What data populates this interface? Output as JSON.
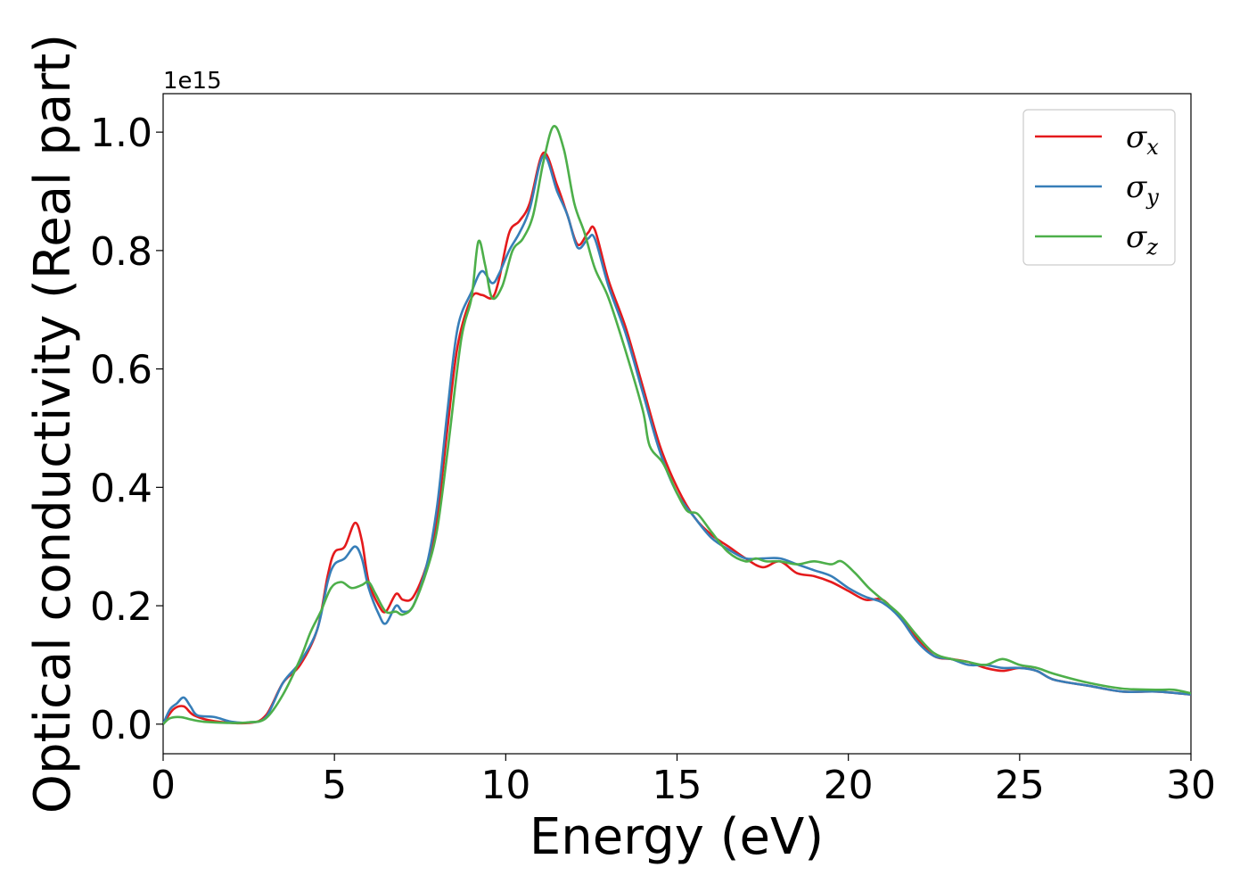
{
  "chart_data": {
    "type": "line",
    "xlabel": "Energy (eV)",
    "ylabel": "Optical conductivity (Real part)",
    "y_offset_label": "1e15",
    "xlim": [
      0,
      30
    ],
    "ylim": [
      -0.05,
      1.065
    ],
    "x_ticks": [
      0,
      5,
      10,
      15,
      20,
      25,
      30
    ],
    "x_tick_labels": [
      "0",
      "5",
      "10",
      "15",
      "20",
      "25",
      "30"
    ],
    "y_ticks": [
      0.0,
      0.2,
      0.4,
      0.6,
      0.8,
      1.0
    ],
    "y_tick_labels": [
      "0.0",
      "0.2",
      "0.4",
      "0.6",
      "0.8",
      "1.0"
    ],
    "grid": false,
    "legend_position": "top-right",
    "series": [
      {
        "name": "σx",
        "name_base": "σ",
        "name_sub": "x",
        "color": "#e41a1c",
        "points": [
          [
            0,
            0
          ],
          [
            0.3,
            0.025
          ],
          [
            0.6,
            0.03
          ],
          [
            0.9,
            0.015
          ],
          [
            1.5,
            0.005
          ],
          [
            2.5,
            0.002
          ],
          [
            3.0,
            0.015
          ],
          [
            3.5,
            0.07
          ],
          [
            4.0,
            0.1
          ],
          [
            4.5,
            0.16
          ],
          [
            4.8,
            0.25
          ],
          [
            5.0,
            0.29
          ],
          [
            5.3,
            0.3
          ],
          [
            5.6,
            0.34
          ],
          [
            5.8,
            0.31
          ],
          [
            6.0,
            0.24
          ],
          [
            6.3,
            0.2
          ],
          [
            6.5,
            0.19
          ],
          [
            6.8,
            0.22
          ],
          [
            7.0,
            0.21
          ],
          [
            7.3,
            0.215
          ],
          [
            7.7,
            0.27
          ],
          [
            8.0,
            0.35
          ],
          [
            8.3,
            0.5
          ],
          [
            8.6,
            0.64
          ],
          [
            9.0,
            0.72
          ],
          [
            9.3,
            0.725
          ],
          [
            9.6,
            0.72
          ],
          [
            9.8,
            0.75
          ],
          [
            10.1,
            0.83
          ],
          [
            10.4,
            0.85
          ],
          [
            10.7,
            0.88
          ],
          [
            11.1,
            0.965
          ],
          [
            11.5,
            0.91
          ],
          [
            11.8,
            0.86
          ],
          [
            12.1,
            0.81
          ],
          [
            12.4,
            0.83
          ],
          [
            12.6,
            0.835
          ],
          [
            13.0,
            0.75
          ],
          [
            13.5,
            0.67
          ],
          [
            14.0,
            0.57
          ],
          [
            14.5,
            0.47
          ],
          [
            15.0,
            0.4
          ],
          [
            15.5,
            0.35
          ],
          [
            16.0,
            0.32
          ],
          [
            16.5,
            0.3
          ],
          [
            17.0,
            0.28
          ],
          [
            17.5,
            0.265
          ],
          [
            18.0,
            0.275
          ],
          [
            18.5,
            0.255
          ],
          [
            19.0,
            0.25
          ],
          [
            19.5,
            0.24
          ],
          [
            20.0,
            0.225
          ],
          [
            20.5,
            0.21
          ],
          [
            21.0,
            0.21
          ],
          [
            21.5,
            0.18
          ],
          [
            22.0,
            0.145
          ],
          [
            22.5,
            0.115
          ],
          [
            23.0,
            0.11
          ],
          [
            23.5,
            0.105
          ],
          [
            24.0,
            0.095
          ],
          [
            24.5,
            0.09
          ],
          [
            25.0,
            0.095
          ],
          [
            25.5,
            0.09
          ],
          [
            26.0,
            0.075
          ],
          [
            27.0,
            0.065
          ],
          [
            28.0,
            0.055
          ],
          [
            29.0,
            0.055
          ],
          [
            30.0,
            0.05
          ]
        ]
      },
      {
        "name": "σy",
        "name_base": "σ",
        "name_sub": "y",
        "color": "#377eb8",
        "points": [
          [
            0,
            0
          ],
          [
            0.2,
            0.025
          ],
          [
            0.4,
            0.035
          ],
          [
            0.6,
            0.045
          ],
          [
            0.8,
            0.03
          ],
          [
            1.0,
            0.015
          ],
          [
            1.5,
            0.012
          ],
          [
            2.0,
            0.004
          ],
          [
            2.5,
            0.003
          ],
          [
            3.0,
            0.012
          ],
          [
            3.5,
            0.07
          ],
          [
            4.0,
            0.105
          ],
          [
            4.5,
            0.16
          ],
          [
            4.8,
            0.24
          ],
          [
            5.0,
            0.27
          ],
          [
            5.3,
            0.28
          ],
          [
            5.6,
            0.3
          ],
          [
            5.8,
            0.28
          ],
          [
            6.0,
            0.23
          ],
          [
            6.3,
            0.185
          ],
          [
            6.5,
            0.17
          ],
          [
            6.8,
            0.2
          ],
          [
            7.0,
            0.19
          ],
          [
            7.3,
            0.2
          ],
          [
            7.7,
            0.27
          ],
          [
            8.0,
            0.37
          ],
          [
            8.3,
            0.53
          ],
          [
            8.6,
            0.67
          ],
          [
            9.0,
            0.73
          ],
          [
            9.3,
            0.765
          ],
          [
            9.6,
            0.745
          ],
          [
            9.8,
            0.76
          ],
          [
            10.1,
            0.8
          ],
          [
            10.4,
            0.83
          ],
          [
            10.7,
            0.87
          ],
          [
            11.1,
            0.96
          ],
          [
            11.5,
            0.9
          ],
          [
            11.8,
            0.86
          ],
          [
            12.1,
            0.805
          ],
          [
            12.4,
            0.82
          ],
          [
            12.6,
            0.82
          ],
          [
            13.0,
            0.74
          ],
          [
            13.5,
            0.66
          ],
          [
            14.0,
            0.56
          ],
          [
            14.5,
            0.46
          ],
          [
            15.0,
            0.39
          ],
          [
            15.5,
            0.35
          ],
          [
            16.0,
            0.315
          ],
          [
            16.5,
            0.295
          ],
          [
            17.0,
            0.28
          ],
          [
            17.5,
            0.28
          ],
          [
            18.0,
            0.28
          ],
          [
            18.5,
            0.27
          ],
          [
            19.0,
            0.26
          ],
          [
            19.5,
            0.25
          ],
          [
            20.0,
            0.23
          ],
          [
            20.5,
            0.215
          ],
          [
            21.0,
            0.205
          ],
          [
            21.5,
            0.18
          ],
          [
            22.0,
            0.14
          ],
          [
            22.5,
            0.115
          ],
          [
            23.0,
            0.11
          ],
          [
            23.5,
            0.1
          ],
          [
            24.0,
            0.1
          ],
          [
            24.5,
            0.095
          ],
          [
            25.0,
            0.095
          ],
          [
            25.5,
            0.09
          ],
          [
            26.0,
            0.075
          ],
          [
            27.0,
            0.065
          ],
          [
            28.0,
            0.055
          ],
          [
            29.0,
            0.055
          ],
          [
            30.0,
            0.05
          ]
        ]
      },
      {
        "name": "σz",
        "name_base": "σ",
        "name_sub": "z",
        "color": "#4daf4a",
        "points": [
          [
            0,
            0
          ],
          [
            0.2,
            0.01
          ],
          [
            0.5,
            0.012
          ],
          [
            0.8,
            0.008
          ],
          [
            1.2,
            0.004
          ],
          [
            2.0,
            0.002
          ],
          [
            2.5,
            0.003
          ],
          [
            3.0,
            0.01
          ],
          [
            3.5,
            0.05
          ],
          [
            4.0,
            0.11
          ],
          [
            4.3,
            0.155
          ],
          [
            4.6,
            0.19
          ],
          [
            4.9,
            0.23
          ],
          [
            5.2,
            0.24
          ],
          [
            5.5,
            0.23
          ],
          [
            5.8,
            0.235
          ],
          [
            6.0,
            0.24
          ],
          [
            6.2,
            0.22
          ],
          [
            6.5,
            0.19
          ],
          [
            6.8,
            0.19
          ],
          [
            7.0,
            0.185
          ],
          [
            7.3,
            0.2
          ],
          [
            7.7,
            0.26
          ],
          [
            8.0,
            0.33
          ],
          [
            8.3,
            0.46
          ],
          [
            8.7,
            0.65
          ],
          [
            9.0,
            0.72
          ],
          [
            9.2,
            0.815
          ],
          [
            9.4,
            0.775
          ],
          [
            9.6,
            0.72
          ],
          [
            9.9,
            0.74
          ],
          [
            10.2,
            0.8
          ],
          [
            10.5,
            0.82
          ],
          [
            10.8,
            0.86
          ],
          [
            11.1,
            0.95
          ],
          [
            11.4,
            1.01
          ],
          [
            11.7,
            0.97
          ],
          [
            12.0,
            0.88
          ],
          [
            12.3,
            0.83
          ],
          [
            12.6,
            0.77
          ],
          [
            13.0,
            0.72
          ],
          [
            13.5,
            0.63
          ],
          [
            14.0,
            0.53
          ],
          [
            14.2,
            0.47
          ],
          [
            14.6,
            0.44
          ],
          [
            15.0,
            0.39
          ],
          [
            15.3,
            0.36
          ],
          [
            15.6,
            0.355
          ],
          [
            16.0,
            0.325
          ],
          [
            16.5,
            0.29
          ],
          [
            17.0,
            0.275
          ],
          [
            17.3,
            0.28
          ],
          [
            17.6,
            0.275
          ],
          [
            18.0,
            0.275
          ],
          [
            18.5,
            0.27
          ],
          [
            19.0,
            0.275
          ],
          [
            19.5,
            0.27
          ],
          [
            19.8,
            0.275
          ],
          [
            20.2,
            0.255
          ],
          [
            20.6,
            0.23
          ],
          [
            21.0,
            0.21
          ],
          [
            21.5,
            0.185
          ],
          [
            22.0,
            0.15
          ],
          [
            22.5,
            0.12
          ],
          [
            23.0,
            0.11
          ],
          [
            23.5,
            0.105
          ],
          [
            24.0,
            0.1
          ],
          [
            24.5,
            0.11
          ],
          [
            25.0,
            0.1
          ],
          [
            25.5,
            0.095
          ],
          [
            26.0,
            0.085
          ],
          [
            27.0,
            0.07
          ],
          [
            28.0,
            0.06
          ],
          [
            29.0,
            0.058
          ],
          [
            29.5,
            0.058
          ],
          [
            30.0,
            0.052
          ]
        ]
      }
    ]
  }
}
